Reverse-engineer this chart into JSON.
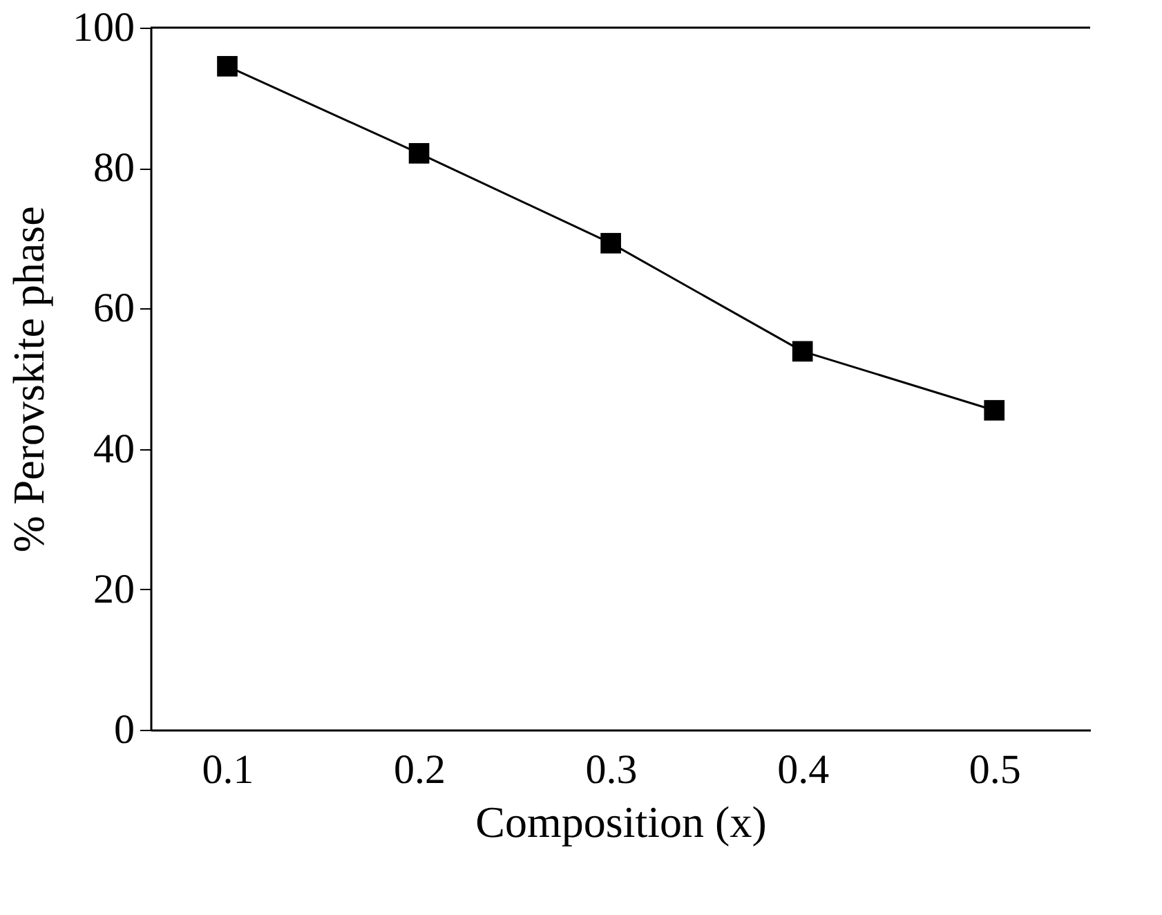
{
  "chart_data": {
    "type": "line",
    "xlabel": "Composition (x)",
    "ylabel": "% Perovskite phase",
    "x": [
      0.1,
      0.2,
      0.3,
      0.4,
      0.5
    ],
    "series": [
      {
        "color": "#000000",
        "values": [
          94.5,
          82.1,
          69.3,
          53.9,
          45.5
        ]
      }
    ],
    "xlim": [
      0.06,
      0.55
    ],
    "xticks": [
      0.1,
      0.2,
      0.3,
      0.4,
      0.5
    ],
    "ylim": [
      0,
      100
    ],
    "yticks": [
      0,
      20,
      40,
      60,
      80,
      100
    ],
    "marker": "square",
    "line_style": "solid",
    "grid": false
  }
}
